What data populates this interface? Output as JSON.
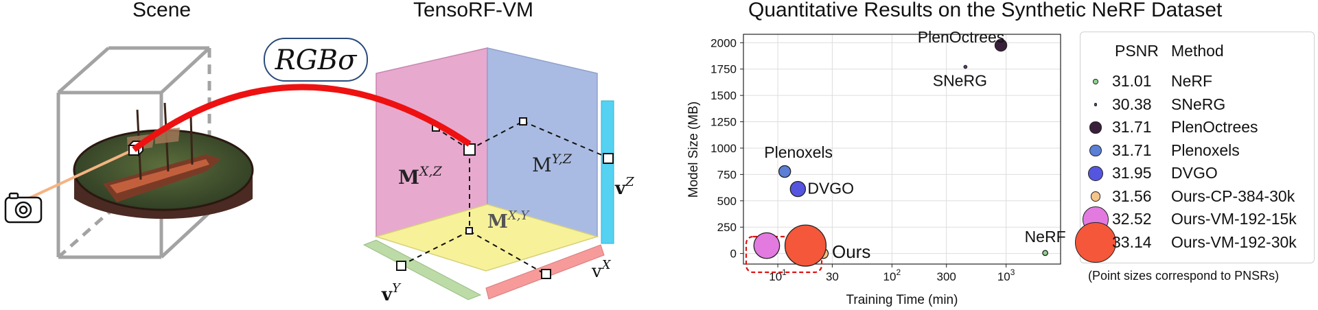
{
  "panels": {
    "scene_title": "Scene",
    "tensorf_title": "TensoRF-VM",
    "chart_title": "Quantitative Results on the Synthetic NeRF Dataset"
  },
  "diagram": {
    "rgb_label": "RGBσ",
    "plane_xz": "M^{X,Z}",
    "plane_yz": "M^{Y,Z}",
    "plane_xy": "M^{X,Y}",
    "vec_y": "v^Y",
    "vec_x": "v^X",
    "vec_z": "v^Z",
    "colors": {
      "pink": "#e8a9cf",
      "blue": "#aabbe3",
      "yellow": "#f7f29a",
      "green": "#bcdba7",
      "red": "#f79a9a",
      "cyan": "#55d2f2",
      "arc": "#ee1111"
    }
  },
  "chart_data": {
    "type": "scatter",
    "title": "Quantitative Results on the Synthetic NeRF Dataset",
    "xlabel": "Training Time (min)",
    "ylabel": "Model Size (MB)",
    "xscale": "log",
    "xlim": [
      5,
      3000
    ],
    "ylim": [
      -100,
      2080
    ],
    "xticks": [
      {
        "value": 10,
        "base": "10",
        "exp": "1"
      },
      {
        "value": 30,
        "base": "30",
        "exp": ""
      },
      {
        "value": 100,
        "base": "10",
        "exp": "2"
      },
      {
        "value": 300,
        "base": "300",
        "exp": ""
      },
      {
        "value": 1000,
        "base": "10",
        "exp": "3"
      }
    ],
    "yticks": [
      0,
      250,
      500,
      750,
      1000,
      1250,
      1500,
      1750,
      2000
    ],
    "grid": true,
    "legend_position": "right",
    "legend_headers": {
      "psnr": "PSNR",
      "method": "Method"
    },
    "points": [
      {
        "method": "NeRF",
        "psnr": "31.01",
        "x": 2200,
        "y": 5,
        "color": "#8fd18f",
        "label": "NeRF"
      },
      {
        "method": "SNeRG",
        "psnr": "30.38",
        "x": 440,
        "y": 1771,
        "color": "#6b3a8a",
        "label": "SNeRG"
      },
      {
        "method": "PlenOctrees",
        "psnr": "31.71",
        "x": 900,
        "y": 1976,
        "color": "#3a1f3a",
        "label": "PlenOctrees"
      },
      {
        "method": "Plenoxels",
        "psnr": "31.71",
        "x": 11.5,
        "y": 778,
        "color": "#5b7fd6",
        "label": "Plenoxels"
      },
      {
        "method": "DVGO",
        "psnr": "31.95",
        "x": 15,
        "y": 612,
        "color": "#5555e0",
        "label": "DVGO"
      },
      {
        "method": "Ours-CP-384-30k",
        "psnr": "31.56",
        "x": 25,
        "y": 0,
        "color": "#f5c48a",
        "label": ""
      },
      {
        "method": "Ours-VM-192-15k",
        "psnr": "32.52",
        "x": 8,
        "y": 75,
        "color": "#e27ae0",
        "label": ""
      },
      {
        "method": "Ours-VM-192-30k",
        "psnr": "33.14",
        "x": 17.5,
        "y": 75,
        "color": "#f4573a",
        "label": ""
      }
    ],
    "annotation": "Ours",
    "note": "(Point sizes correspond to PNSRs)"
  }
}
